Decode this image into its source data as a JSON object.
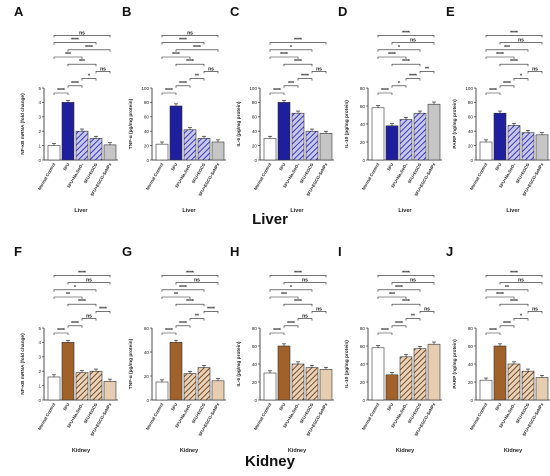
{
  "section_titles": [
    "Liver",
    "Kidney"
  ],
  "groups": [
    "Normal Control",
    "5FU",
    "5FU+Na₂SeO₃",
    "5FU+EGCG",
    "5FU+EGCG-SeNPs"
  ],
  "colors": {
    "liver": [
      "#ffffff",
      "#1f1f9e",
      "#5a5ad6",
      "#9090e8",
      "#c6c6c6"
    ],
    "kidney": [
      "#ffffff",
      "#a0622a",
      "#6b4424",
      "#c89060",
      "#e6ccb0"
    ],
    "edge": "#333333",
    "errorbar": "#111111"
  },
  "chart_data": [
    {
      "type": "bar",
      "panel": "A",
      "organ": "Liver",
      "ylabel": "NF-κB mRNA (fold change)",
      "xlabel": "Liver",
      "ylim": [
        0,
        5
      ],
      "yticks": [
        0,
        1,
        2,
        3,
        4,
        5
      ],
      "values": [
        1.0,
        4.0,
        2.0,
        1.5,
        1.05
      ],
      "hatch": [
        false,
        false,
        true,
        true,
        false
      ],
      "brackets": [
        [
          "A1",
          "A2",
          "****"
        ],
        [
          "A2",
          "A3",
          "****"
        ],
        [
          "A3",
          "A4",
          "*"
        ],
        [
          "A4",
          "A5",
          "ns"
        ],
        [
          "A2",
          "A4",
          "***"
        ],
        [
          "A2",
          "A5",
          "****"
        ],
        [
          "A1",
          "A3",
          "***"
        ],
        [
          "A1",
          "A4",
          "****"
        ],
        [
          "A1",
          "A5",
          "ns"
        ]
      ]
    },
    {
      "type": "bar",
      "panel": "B",
      "organ": "Liver",
      "ylabel": "TNF-α (pg/mg protein)",
      "xlabel": "Liver",
      "ylim": [
        0,
        100
      ],
      "yticks": [
        0,
        20,
        40,
        60,
        80,
        100
      ],
      "values": [
        22,
        75,
        42,
        30,
        25
      ],
      "hatch": [
        false,
        false,
        true,
        true,
        false
      ],
      "brackets": [
        [
          "A1",
          "A2",
          "****"
        ],
        [
          "A2",
          "A3",
          "****"
        ],
        [
          "A3",
          "A4",
          "**"
        ],
        [
          "A4",
          "A5",
          "ns"
        ],
        [
          "A2",
          "A4",
          "****"
        ],
        [
          "A2",
          "A5",
          "****"
        ],
        [
          "A1",
          "A3",
          "****"
        ],
        [
          "A1",
          "A4",
          "****"
        ],
        [
          "A1",
          "A5",
          "ns"
        ]
      ]
    },
    {
      "type": "bar",
      "panel": "C",
      "organ": "Liver",
      "ylabel": "IL-6 (pg/mg protein)",
      "xlabel": "Liver",
      "ylim": [
        0,
        100
      ],
      "yticks": [
        0,
        20,
        40,
        60,
        80,
        100
      ],
      "values": [
        30,
        80,
        65,
        40,
        37
      ],
      "hatch": [
        false,
        false,
        true,
        true,
        false
      ],
      "brackets": [
        [
          "A1",
          "A2",
          "****"
        ],
        [
          "A2",
          "A3",
          "***"
        ],
        [
          "A3",
          "A4",
          "****"
        ],
        [
          "A4",
          "A5",
          "ns"
        ],
        [
          "A2",
          "A4",
          "****"
        ],
        [
          "A1",
          "A3",
          "****"
        ],
        [
          "A1",
          "A4",
          "*"
        ],
        [
          "A1",
          "A5",
          "****"
        ]
      ]
    },
    {
      "type": "bar",
      "panel": "D",
      "organ": "Liver",
      "ylabel": "IL-10 (pg/mg protein)",
      "xlabel": "Liver",
      "ylim": [
        0,
        80
      ],
      "yticks": [
        0,
        20,
        40,
        60,
        80
      ],
      "values": [
        58,
        38,
        45,
        52,
        62
      ],
      "hatch": [
        false,
        false,
        true,
        true,
        false
      ],
      "brackets": [
        [
          "A1",
          "A2",
          "****"
        ],
        [
          "A2",
          "A3",
          "*"
        ],
        [
          "A3",
          "A4",
          "****"
        ],
        [
          "A4",
          "A5",
          "**"
        ],
        [
          "A2",
          "A4",
          "****"
        ],
        [
          "A1",
          "A3",
          "****"
        ],
        [
          "A1",
          "A4",
          "*"
        ],
        [
          "A1",
          "A5",
          "****"
        ],
        [
          "A2",
          "A5",
          "ns"
        ]
      ]
    },
    {
      "type": "bar",
      "panel": "E",
      "organ": "Liver",
      "ylabel": "PARP (ng/mg protein)",
      "xlabel": "Liver",
      "ylim": [
        0,
        100
      ],
      "yticks": [
        0,
        20,
        40,
        60,
        80,
        100
      ],
      "values": [
        25,
        65,
        48,
        38,
        35
      ],
      "hatch": [
        false,
        false,
        true,
        true,
        false
      ],
      "brackets": [
        [
          "A1",
          "A2",
          "****"
        ],
        [
          "A2",
          "A3",
          "****"
        ],
        [
          "A3",
          "A4",
          "*"
        ],
        [
          "A4",
          "A5",
          "ns"
        ],
        [
          "A2",
          "A4",
          "****"
        ],
        [
          "A1",
          "A3",
          "****"
        ],
        [
          "A1",
          "A4",
          "***"
        ],
        [
          "A1",
          "A5",
          "****"
        ],
        [
          "A2",
          "A5",
          "ns"
        ]
      ]
    },
    {
      "type": "bar",
      "panel": "F",
      "organ": "Kidney",
      "ylabel": "NF-κB mRNA (fold change)",
      "xlabel": "Kidney",
      "ylim": [
        0,
        5
      ],
      "yticks": [
        0,
        1,
        2,
        3,
        4,
        5
      ],
      "values": [
        1.6,
        4.0,
        1.9,
        2.0,
        1.3
      ],
      "hatch": [
        false,
        false,
        true,
        true,
        false
      ],
      "brackets": [
        [
          "A1",
          "A2",
          "****"
        ],
        [
          "A2",
          "A3",
          "****"
        ],
        [
          "A3",
          "A4",
          "ns"
        ],
        [
          "A4",
          "A5",
          "****"
        ],
        [
          "A2",
          "A4",
          "****"
        ],
        [
          "A1",
          "A3",
          "**"
        ],
        [
          "A1",
          "A4",
          "*"
        ],
        [
          "A1",
          "A5",
          "****"
        ],
        [
          "A2",
          "A5",
          "ns"
        ]
      ]
    },
    {
      "type": "bar",
      "panel": "G",
      "organ": "Kidney",
      "ylabel": "TNF-α (pg/mg protein)",
      "xlabel": "Kidney",
      "ylim": [
        0,
        60
      ],
      "yticks": [
        0,
        20,
        40,
        60
      ],
      "values": [
        15,
        48,
        22,
        27,
        16
      ],
      "hatch": [
        false,
        false,
        true,
        true,
        false
      ],
      "brackets": [
        [
          "A1",
          "A2",
          "****"
        ],
        [
          "A2",
          "A3",
          "****"
        ],
        [
          "A3",
          "A4",
          "**"
        ],
        [
          "A4",
          "A5",
          "****"
        ],
        [
          "A2",
          "A4",
          "****"
        ],
        [
          "A1",
          "A3",
          "**"
        ],
        [
          "A1",
          "A4",
          "****"
        ],
        [
          "A1",
          "A5",
          "****"
        ],
        [
          "A2",
          "A5",
          "ns"
        ]
      ]
    },
    {
      "type": "bar",
      "panel": "H",
      "organ": "Kidney",
      "ylabel": "IL-6 (pg/mg protein)",
      "xlabel": "Kidney",
      "ylim": [
        0,
        80
      ],
      "yticks": [
        0,
        20,
        40,
        60,
        80
      ],
      "values": [
        30,
        60,
        40,
        36,
        34
      ],
      "hatch": [
        false,
        false,
        true,
        true,
        false
      ],
      "brackets": [
        [
          "A1",
          "A2",
          "****"
        ],
        [
          "A2",
          "A3",
          "****"
        ],
        [
          "A3",
          "A4",
          "ns"
        ],
        [
          "A4",
          "A5",
          "ns"
        ],
        [
          "A2",
          "A4",
          "****"
        ],
        [
          "A1",
          "A3",
          "***"
        ],
        [
          "A1",
          "A4",
          "*"
        ],
        [
          "A1",
          "A5",
          "****"
        ],
        [
          "A2",
          "A5",
          "ns"
        ]
      ]
    },
    {
      "type": "bar",
      "panel": "I",
      "organ": "Kidney",
      "ylabel": "IL-10 (pg/mg protein)",
      "xlabel": "Kidney",
      "ylim": [
        0,
        80
      ],
      "yticks": [
        0,
        20,
        40,
        60,
        80
      ],
      "values": [
        58,
        28,
        48,
        57,
        62
      ],
      "hatch": [
        false,
        false,
        true,
        true,
        false
      ],
      "brackets": [
        [
          "A1",
          "A2",
          "****"
        ],
        [
          "A2",
          "A3",
          "****"
        ],
        [
          "A3",
          "A4",
          "**"
        ],
        [
          "A4",
          "A5",
          "ns"
        ],
        [
          "A2",
          "A4",
          "****"
        ],
        [
          "A1",
          "A3",
          "***"
        ],
        [
          "A1",
          "A4",
          "****"
        ],
        [
          "A1",
          "A5",
          "****"
        ],
        [
          "A2",
          "A5",
          "ns"
        ]
      ]
    },
    {
      "type": "bar",
      "panel": "J",
      "organ": "Kidney",
      "ylabel": "PARP (ng/mg protein)",
      "xlabel": "Kidney",
      "ylim": [
        0,
        80
      ],
      "yticks": [
        0,
        20,
        40,
        60,
        80
      ],
      "values": [
        22,
        60,
        40,
        32,
        25
      ],
      "hatch": [
        false,
        false,
        true,
        true,
        false
      ],
      "brackets": [
        [
          "A1",
          "A2",
          "****"
        ],
        [
          "A2",
          "A3",
          "****"
        ],
        [
          "A3",
          "A4",
          "*"
        ],
        [
          "A4",
          "A5",
          "ns"
        ],
        [
          "A2",
          "A4",
          "****"
        ],
        [
          "A1",
          "A3",
          "****"
        ],
        [
          "A1",
          "A4",
          "**"
        ],
        [
          "A1",
          "A5",
          "****"
        ],
        [
          "A2",
          "A5",
          "ns"
        ]
      ]
    }
  ]
}
